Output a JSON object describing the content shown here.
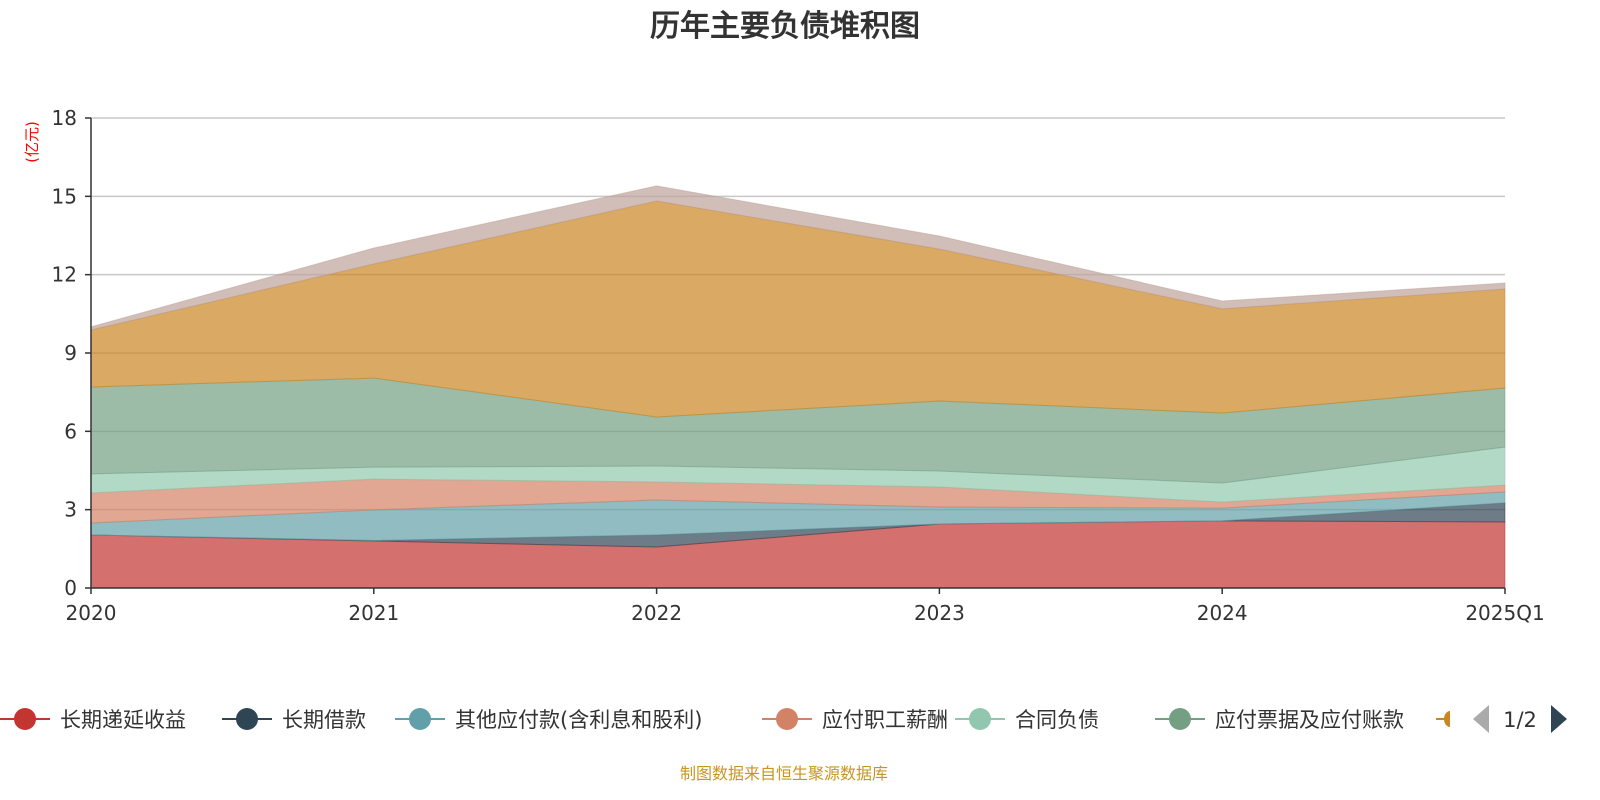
{
  "chart_data": {
    "type": "area",
    "stacked": true,
    "title": "历年主要负债堆积图",
    "ylabel": "(亿元)",
    "xlabel": "",
    "x": [
      "2020",
      "2021",
      "2022",
      "2023",
      "2024",
      "2025Q1"
    ],
    "ylim": [
      0,
      18
    ],
    "yticks": [
      "0",
      "3",
      "6",
      "9",
      "12",
      "15",
      "18"
    ],
    "grid": true,
    "legend_position": "bottom",
    "legend_page": "1/2",
    "series": [
      {
        "name": "长期递延收益",
        "color": "#c23531",
        "values": [
          2.03,
          1.8,
          1.57,
          2.45,
          2.57,
          2.53
        ]
      },
      {
        "name": "长期借款",
        "color": "#2f4554",
        "values": [
          0.0,
          0.02,
          0.46,
          0.0,
          0.0,
          0.73
        ]
      },
      {
        "name": "其他应付款(含利息和股利)",
        "color": "#61a0a8",
        "values": [
          0.46,
          1.17,
          1.34,
          0.65,
          0.49,
          0.42
        ]
      },
      {
        "name": "应付职工薪酬",
        "color": "#d48265",
        "values": [
          1.15,
          1.18,
          0.69,
          0.77,
          0.23,
          0.26
        ]
      },
      {
        "name": "合同负债",
        "color": "#91c7ae",
        "values": [
          0.73,
          0.46,
          0.61,
          0.61,
          0.73,
          1.46
        ]
      },
      {
        "name": "应付票据及应付账款",
        "color": "#749f83",
        "values": [
          3.33,
          3.41,
          1.88,
          2.68,
          2.68,
          2.26
        ]
      },
      {
        "color": "#ca8622",
        "values": [
          2.18,
          4.37,
          8.27,
          5.82,
          3.99,
          3.79
        ]
      },
      {
        "color": "#bda29a",
        "values": [
          0.12,
          0.61,
          0.58,
          0.5,
          0.3,
          0.23
        ]
      }
    ],
    "visible_legend_count": 6,
    "source_note": "制图数据来自恒生聚源数据库"
  }
}
